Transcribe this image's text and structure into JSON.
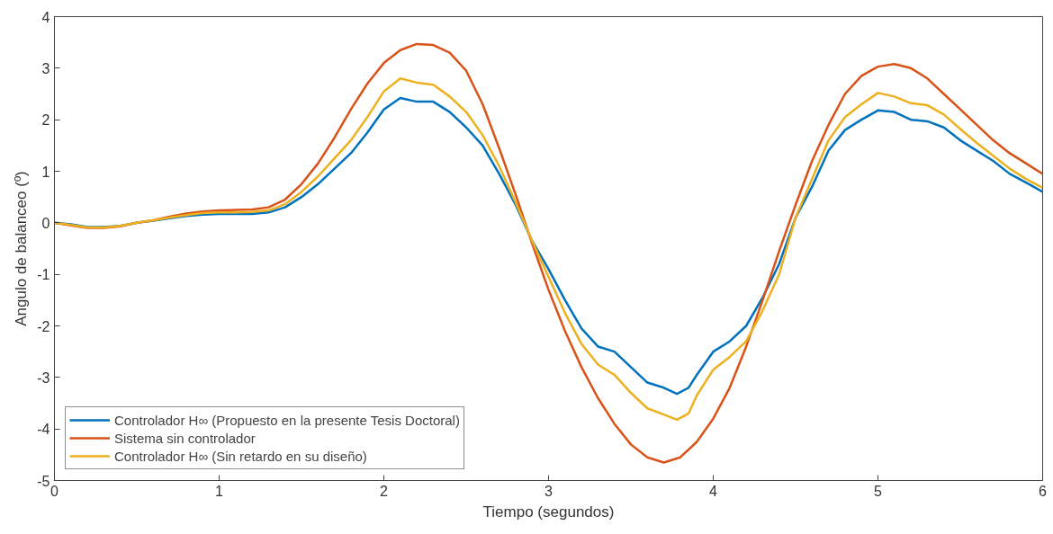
{
  "chart_data": {
    "type": "line",
    "xlabel": "Tiempo (segundos)",
    "ylabel": "Angulo de balanceo (º)",
    "xlim": [
      0,
      6
    ],
    "ylim": [
      -5,
      4
    ],
    "xticks": [
      0,
      1,
      2,
      3,
      4,
      5,
      6
    ],
    "yticks": [
      -5,
      -4,
      -3,
      -2,
      -1,
      0,
      1,
      2,
      3,
      4
    ],
    "grid": false,
    "legend": "bottom left",
    "marker": "none",
    "line_style": "solid",
    "series": [
      {
        "name": "Controlador H∞ (Propuesto en la presente Tesis Doctoral)",
        "color": "#0072bd",
        "x": [
          0,
          0.1,
          0.2,
          0.3,
          0.4,
          0.5,
          0.6,
          0.7,
          0.8,
          0.9,
          1.0,
          1.1,
          1.2,
          1.3,
          1.4,
          1.5,
          1.6,
          1.7,
          1.8,
          1.9,
          2.0,
          2.1,
          2.2,
          2.3,
          2.4,
          2.5,
          2.6,
          2.7,
          2.8,
          2.9,
          3.0,
          3.1,
          3.2,
          3.3,
          3.4,
          3.5,
          3.6,
          3.7,
          3.78,
          3.85,
          3.9,
          4.0,
          4.1,
          4.2,
          4.3,
          4.4,
          4.5,
          4.6,
          4.7,
          4.8,
          4.9,
          5.0,
          5.1,
          5.2,
          5.3,
          5.4,
          5.5,
          5.6,
          5.7,
          5.8,
          5.9,
          6.0
        ],
        "values": [
          0,
          -0.03,
          -0.08,
          -0.08,
          -0.06,
          0,
          0.04,
          0.09,
          0.13,
          0.16,
          0.17,
          0.17,
          0.17,
          0.2,
          0.3,
          0.5,
          0.75,
          1.05,
          1.35,
          1.75,
          2.2,
          2.42,
          2.35,
          2.35,
          2.15,
          1.85,
          1.5,
          0.95,
          0.35,
          -0.35,
          -0.9,
          -1.5,
          -2.05,
          -2.4,
          -2.5,
          -2.8,
          -3.1,
          -3.2,
          -3.32,
          -3.2,
          -2.95,
          -2.5,
          -2.3,
          -2.0,
          -1.45,
          -0.8,
          0.1,
          0.7,
          1.4,
          1.8,
          2.0,
          2.18,
          2.15,
          2.0,
          1.97,
          1.85,
          1.6,
          1.4,
          1.2,
          0.95,
          0.78,
          0.6
        ]
      },
      {
        "name": "Sistema sin controlador",
        "color": "#d95319",
        "x": [
          0,
          0.1,
          0.2,
          0.3,
          0.4,
          0.5,
          0.6,
          0.7,
          0.8,
          0.9,
          1.0,
          1.1,
          1.2,
          1.3,
          1.4,
          1.5,
          1.6,
          1.7,
          1.8,
          1.9,
          2.0,
          2.1,
          2.2,
          2.3,
          2.4,
          2.5,
          2.6,
          2.7,
          2.8,
          2.9,
          3.0,
          3.1,
          3.2,
          3.3,
          3.4,
          3.5,
          3.6,
          3.7,
          3.8,
          3.9,
          4.0,
          4.1,
          4.2,
          4.3,
          4.4,
          4.5,
          4.6,
          4.7,
          4.8,
          4.9,
          5.0,
          5.1,
          5.2,
          5.3,
          5.4,
          5.5,
          5.6,
          5.7,
          5.8,
          5.9,
          6.0
        ],
        "values": [
          0,
          -0.05,
          -0.1,
          -0.1,
          -0.07,
          0,
          0.05,
          0.12,
          0.18,
          0.22,
          0.24,
          0.25,
          0.26,
          0.3,
          0.45,
          0.75,
          1.15,
          1.65,
          2.2,
          2.7,
          3.1,
          3.35,
          3.47,
          3.45,
          3.3,
          2.95,
          2.3,
          1.45,
          0.55,
          -0.4,
          -1.3,
          -2.1,
          -2.8,
          -3.4,
          -3.9,
          -4.3,
          -4.55,
          -4.65,
          -4.55,
          -4.25,
          -3.8,
          -3.2,
          -2.4,
          -1.5,
          -0.55,
          0.35,
          1.2,
          1.9,
          2.5,
          2.85,
          3.03,
          3.08,
          3.0,
          2.8,
          2.5,
          2.2,
          1.9,
          1.6,
          1.35,
          1.15,
          0.95
        ]
      },
      {
        "name": "Controlador H∞ (Sin retardo en su diseño)",
        "color": "#edb120",
        "x": [
          0,
          0.1,
          0.2,
          0.3,
          0.4,
          0.5,
          0.6,
          0.7,
          0.8,
          0.9,
          1.0,
          1.1,
          1.2,
          1.3,
          1.4,
          1.5,
          1.6,
          1.7,
          1.8,
          1.9,
          2.0,
          2.1,
          2.2,
          2.3,
          2.4,
          2.5,
          2.6,
          2.7,
          2.8,
          2.9,
          3.0,
          3.1,
          3.2,
          3.3,
          3.4,
          3.5,
          3.6,
          3.7,
          3.78,
          3.85,
          3.9,
          4.0,
          4.1,
          4.2,
          4.3,
          4.4,
          4.5,
          4.6,
          4.7,
          4.8,
          4.9,
          5.0,
          5.1,
          5.2,
          5.3,
          5.4,
          5.5,
          5.6,
          5.7,
          5.8,
          5.9,
          6.0
        ],
        "values": [
          0,
          -0.04,
          -0.09,
          -0.09,
          -0.06,
          0,
          0.05,
          0.1,
          0.15,
          0.19,
          0.2,
          0.2,
          0.21,
          0.24,
          0.36,
          0.6,
          0.9,
          1.25,
          1.6,
          2.05,
          2.55,
          2.8,
          2.72,
          2.68,
          2.45,
          2.15,
          1.7,
          1.1,
          0.4,
          -0.35,
          -1.05,
          -1.75,
          -2.35,
          -2.75,
          -2.95,
          -3.3,
          -3.6,
          -3.72,
          -3.82,
          -3.7,
          -3.35,
          -2.85,
          -2.6,
          -2.3,
          -1.7,
          -1.0,
          0.1,
          0.85,
          1.6,
          2.05,
          2.3,
          2.52,
          2.45,
          2.32,
          2.28,
          2.1,
          1.82,
          1.55,
          1.3,
          1.05,
          0.85,
          0.68
        ]
      }
    ]
  }
}
